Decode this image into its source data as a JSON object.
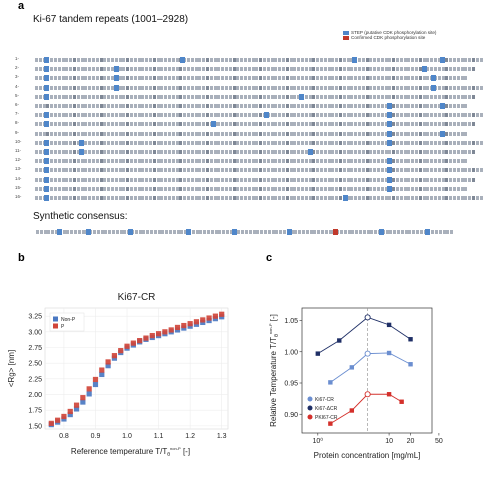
{
  "panel_a": {
    "letter": "a",
    "title": "Ki-67 tandem repeats (1001–2928)",
    "legend": [
      {
        "label": "STEP (putative CDK phosphorylation site)",
        "color": "#4f86c9"
      },
      {
        "label": "Confirmed CDK phosphorylation site",
        "color": "#c0392b"
      }
    ],
    "rows": [
      {
        "num": "1-",
        "sites": [
          2,
          33,
          72,
          92
        ]
      },
      {
        "num": "2-",
        "sites": [
          2,
          18,
          88
        ]
      },
      {
        "num": "3-",
        "sites": [
          2,
          18,
          90
        ]
      },
      {
        "num": "4-",
        "sites": [
          2,
          18,
          90
        ]
      },
      {
        "num": "5-",
        "sites": [
          2,
          60
        ]
      },
      {
        "num": "6-",
        "sites": [
          80,
          92
        ]
      },
      {
        "num": "7-",
        "sites": [
          2,
          52,
          80
        ]
      },
      {
        "num": "8-",
        "sites": [
          2,
          40,
          80
        ]
      },
      {
        "num": "9-",
        "sites": [
          80,
          92
        ]
      },
      {
        "num": "10-",
        "sites": [
          2,
          10,
          80
        ]
      },
      {
        "num": "11-",
        "sites": [
          2,
          10,
          62
        ]
      },
      {
        "num": "12-",
        "sites": [
          2,
          80
        ]
      },
      {
        "num": "13-",
        "sites": [
          2,
          80
        ]
      },
      {
        "num": "14-",
        "sites": [
          2,
          80
        ]
      },
      {
        "num": "15-",
        "sites": [
          2,
          80
        ]
      },
      {
        "num": "16-",
        "sites": [
          2,
          70
        ]
      }
    ],
    "consensus_label": "Synthetic consensus:"
  },
  "panel_b": {
    "letter": "b",
    "chart_data": {
      "type": "scatter",
      "title": "Ki67-CR",
      "xlabel": "Reference temperature T/T",
      "xlabel_sup": "θ",
      "xlabel_sup2": "non-P",
      "xlabel_unit": "[-]",
      "ylabel": "<Rg> [nm]",
      "xlim": [
        0.74,
        1.32
      ],
      "ylim": [
        1.45,
        3.38
      ],
      "xticks": [
        "0.8",
        "0.9",
        "1.0",
        "1.1",
        "1.2",
        "1.3"
      ],
      "xtick_values": [
        0.8,
        0.9,
        1.0,
        1.1,
        1.2,
        1.3
      ],
      "yticks": [
        "1.50",
        "1.75",
        "2.00",
        "2.25",
        "2.50",
        "2.75",
        "3.00",
        "3.25"
      ],
      "ytick_values": [
        1.5,
        1.75,
        2.0,
        2.25,
        2.5,
        2.75,
        3.0,
        3.25
      ],
      "series": [
        {
          "name": "Non-P",
          "color": "#4a78c2",
          "x": [
            0.76,
            0.78,
            0.8,
            0.82,
            0.84,
            0.86,
            0.88,
            0.9,
            0.92,
            0.94,
            0.96,
            0.98,
            1.0,
            1.02,
            1.04,
            1.06,
            1.08,
            1.1,
            1.12,
            1.14,
            1.16,
            1.18,
            1.2,
            1.22,
            1.24,
            1.26,
            1.28,
            1.3
          ],
          "y": [
            1.52,
            1.56,
            1.61,
            1.68,
            1.77,
            1.88,
            2.01,
            2.16,
            2.32,
            2.46,
            2.58,
            2.67,
            2.74,
            2.79,
            2.84,
            2.88,
            2.91,
            2.94,
            2.97,
            3.0,
            3.03,
            3.06,
            3.09,
            3.12,
            3.15,
            3.18,
            3.21,
            3.24
          ]
        },
        {
          "name": "P",
          "color": "#d0453a",
          "x": [
            0.76,
            0.78,
            0.8,
            0.82,
            0.84,
            0.86,
            0.88,
            0.9,
            0.92,
            0.94,
            0.96,
            0.98,
            1.0,
            1.02,
            1.04,
            1.06,
            1.08,
            1.1,
            1.12,
            1.14,
            1.16,
            1.18,
            1.2,
            1.22,
            1.24,
            1.26,
            1.28,
            1.3
          ],
          "y": [
            1.54,
            1.59,
            1.65,
            1.73,
            1.83,
            1.95,
            2.09,
            2.24,
            2.39,
            2.52,
            2.62,
            2.7,
            2.77,
            2.82,
            2.86,
            2.9,
            2.94,
            2.97,
            3.0,
            3.03,
            3.07,
            3.1,
            3.13,
            3.16,
            3.19,
            3.22,
            3.25,
            3.28
          ]
        }
      ]
    }
  },
  "panel_c": {
    "letter": "c",
    "chart_data": {
      "type": "line",
      "xlabel": "Protein concentration [mg/mL]",
      "ylabel": "Relative Temperature T/T",
      "ylabel_sub": "θ",
      "ylabel_sup": "non-P",
      "ylabel_unit": "[-]",
      "xscale": "log",
      "xlim": [
        0.6,
        40
      ],
      "ylim": [
        0.87,
        1.07
      ],
      "xticks": [
        "10⁰",
        "10",
        "20",
        "50"
      ],
      "xtick_values": [
        1,
        10,
        20,
        50
      ],
      "yticks": [
        "0.90",
        "0.95",
        "1.00",
        "1.05"
      ],
      "ytick_values": [
        0.9,
        0.95,
        1.0,
        1.05
      ],
      "vline_x": 5.0,
      "legend": "bottom-left",
      "series": [
        {
          "name": "Ki67-CR",
          "color": "#6b8ed0",
          "x": [
            1.5,
            3.0,
            5.0,
            10,
            20
          ],
          "y": [
            0.951,
            0.975,
            0.997,
            0.998,
            0.98
          ]
        },
        {
          "name": "Ki67-ΔCR",
          "color": "#1f2f66",
          "x": [
            1.0,
            2.0,
            5.0,
            10,
            20
          ],
          "y": [
            0.997,
            1.018,
            1.055,
            1.043,
            1.02
          ]
        },
        {
          "name": "PKI67-CR",
          "color": "#d4302b",
          "x": [
            1.5,
            3.0,
            5.0,
            10,
            15
          ],
          "y": [
            0.885,
            0.906,
            0.932,
            0.932,
            0.92
          ]
        }
      ]
    }
  }
}
